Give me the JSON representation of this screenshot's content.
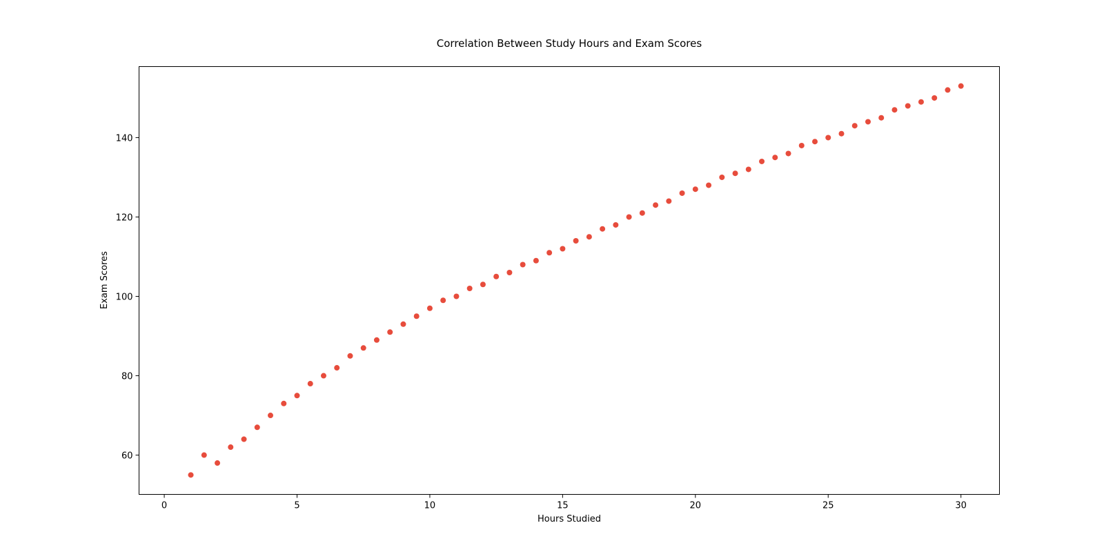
{
  "chart_data": {
    "type": "scatter",
    "title": "Correlation Between Study Hours and Exam Scores",
    "xlabel": "Hours Studied",
    "ylabel": "Exam Scores",
    "xlim": [
      -0.95,
      31.45
    ],
    "ylim": [
      50.1,
      157.9
    ],
    "xticks": [
      0,
      5,
      10,
      15,
      20,
      25,
      30
    ],
    "yticks": [
      60,
      80,
      100,
      120,
      140
    ],
    "grid": false,
    "legend": "none",
    "marker_color": "#e74c3c",
    "points": [
      [
        1,
        55
      ],
      [
        1.5,
        60
      ],
      [
        2,
        58
      ],
      [
        2.5,
        62
      ],
      [
        3,
        64
      ],
      [
        3.5,
        67
      ],
      [
        4,
        70
      ],
      [
        4.5,
        73
      ],
      [
        5,
        75
      ],
      [
        5.5,
        78
      ],
      [
        6,
        80
      ],
      [
        6.5,
        82
      ],
      [
        7,
        85
      ],
      [
        7.5,
        87
      ],
      [
        8,
        89
      ],
      [
        8.5,
        91
      ],
      [
        9,
        93
      ],
      [
        9.5,
        95
      ],
      [
        10,
        97
      ],
      [
        10.5,
        99
      ],
      [
        11,
        100
      ],
      [
        11.5,
        102
      ],
      [
        12,
        103
      ],
      [
        12.5,
        105
      ],
      [
        13,
        106
      ],
      [
        13.5,
        108
      ],
      [
        14,
        109
      ],
      [
        14.5,
        111
      ],
      [
        15,
        112
      ],
      [
        15.5,
        114
      ],
      [
        16,
        115
      ],
      [
        16.5,
        117
      ],
      [
        17,
        118
      ],
      [
        17.5,
        120
      ],
      [
        18,
        121
      ],
      [
        18.5,
        123
      ],
      [
        19,
        124
      ],
      [
        19.5,
        126
      ],
      [
        20,
        127
      ],
      [
        20.5,
        128
      ],
      [
        21,
        130
      ],
      [
        21.5,
        131
      ],
      [
        22,
        132
      ],
      [
        22.5,
        134
      ],
      [
        23,
        135
      ],
      [
        23.5,
        136
      ],
      [
        24,
        138
      ],
      [
        24.5,
        139
      ],
      [
        25,
        140
      ],
      [
        25.5,
        141
      ],
      [
        26,
        143
      ],
      [
        26.5,
        144
      ],
      [
        27,
        145
      ],
      [
        27.5,
        147
      ],
      [
        28,
        148
      ],
      [
        28.5,
        149
      ],
      [
        29,
        150
      ],
      [
        29.5,
        152
      ],
      [
        30,
        153
      ]
    ]
  }
}
